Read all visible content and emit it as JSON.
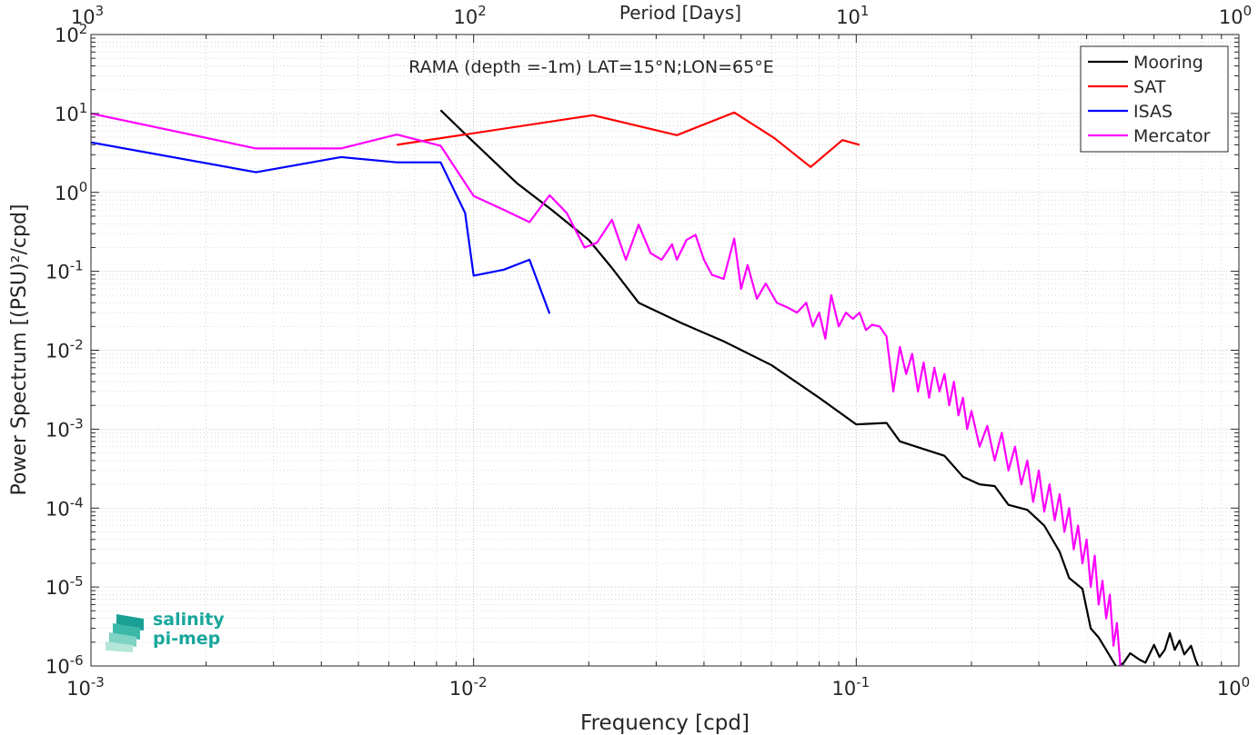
{
  "chart_data": {
    "type": "line",
    "title": "RAMA (depth =-1m) LAT=15°N;LON=65°E",
    "xlabel": "Frequency [cpd]",
    "ylabel": "Power Spectrum [(PSU)²/cpd]",
    "top_axis_label": "Period [Days]",
    "xscale": "log",
    "yscale": "log",
    "xlim": [
      0.001,
      1
    ],
    "ylim": [
      1e-06,
      100
    ],
    "x_ticks": [
      {
        "value": 0.001,
        "base": "10",
        "exp": "-3"
      },
      {
        "value": 0.01,
        "base": "10",
        "exp": "-2"
      },
      {
        "value": 0.1,
        "base": "10",
        "exp": "-1"
      },
      {
        "value": 1,
        "base": "10",
        "exp": "0"
      }
    ],
    "top_ticks": [
      {
        "freq": 0.001,
        "base": "10",
        "exp": "3"
      },
      {
        "freq": 0.01,
        "base": "10",
        "exp": "2"
      },
      {
        "freq": 0.1,
        "base": "10",
        "exp": "1"
      },
      {
        "freq": 1,
        "base": "10",
        "exp": "0"
      }
    ],
    "y_ticks": [
      {
        "value": 100,
        "base": "10",
        "exp": "2"
      },
      {
        "value": 10,
        "base": "10",
        "exp": "1"
      },
      {
        "value": 1,
        "base": "10",
        "exp": "0"
      },
      {
        "value": 0.1,
        "base": "10",
        "exp": "-1"
      },
      {
        "value": 0.01,
        "base": "10",
        "exp": "-2"
      },
      {
        "value": 0.001,
        "base": "10",
        "exp": "-3"
      },
      {
        "value": 0.0001,
        "base": "10",
        "exp": "-4"
      },
      {
        "value": 1e-05,
        "base": "10",
        "exp": "-5"
      },
      {
        "value": 1e-06,
        "base": "10",
        "exp": "-6"
      }
    ],
    "grid": true,
    "legend_position": "top-right",
    "series": [
      {
        "name": "Mooring",
        "color": "#000000",
        "points": [
          [
            0.0082,
            11
          ],
          [
            0.0095,
            5.5
          ],
          [
            0.011,
            2.8
          ],
          [
            0.013,
            1.3
          ],
          [
            0.016,
            0.6
          ],
          [
            0.02,
            0.25
          ],
          [
            0.023,
            0.11
          ],
          [
            0.027,
            0.04
          ],
          [
            0.035,
            0.022
          ],
          [
            0.045,
            0.013
          ],
          [
            0.06,
            0.0065
          ],
          [
            0.08,
            0.0025
          ],
          [
            0.1,
            0.00115
          ],
          [
            0.12,
            0.0012
          ],
          [
            0.13,
            0.0007
          ],
          [
            0.17,
            0.00046
          ],
          [
            0.19,
            0.00025
          ],
          [
            0.21,
            0.0002
          ],
          [
            0.23,
            0.00019
          ],
          [
            0.25,
            0.00011
          ],
          [
            0.28,
            9.5e-05
          ],
          [
            0.31,
            6e-05
          ],
          [
            0.34,
            2.8e-05
          ],
          [
            0.36,
            1.3e-05
          ],
          [
            0.39,
            9.5e-06
          ],
          [
            0.41,
            3e-06
          ],
          [
            0.43,
            2.3e-06
          ],
          [
            0.45,
            1.6e-06
          ],
          [
            0.48,
            9.5e-07
          ],
          [
            0.5,
            1.1e-06
          ],
          [
            0.52,
            1.45e-06
          ],
          [
            0.55,
            1.2e-06
          ],
          [
            0.57,
            1.1e-06
          ],
          [
            0.6,
            1.85e-06
          ],
          [
            0.62,
            1.3e-06
          ],
          [
            0.64,
            1.6e-06
          ],
          [
            0.66,
            2.6e-06
          ],
          [
            0.68,
            1.6e-06
          ],
          [
            0.7,
            2.1e-06
          ],
          [
            0.72,
            1.4e-06
          ],
          [
            0.75,
            1.8e-06
          ],
          [
            0.77,
            1.2e-06
          ],
          [
            0.79,
            9e-07
          ]
        ]
      },
      {
        "name": "SAT",
        "color": "#ff0000",
        "points": [
          [
            0.0063,
            4
          ],
          [
            0.0205,
            9.5
          ],
          [
            0.034,
            5.3
          ],
          [
            0.048,
            10.3
          ],
          [
            0.061,
            4.9
          ],
          [
            0.076,
            2.1
          ],
          [
            0.092,
            4.6
          ],
          [
            0.102,
            4
          ]
        ]
      },
      {
        "name": "ISAS",
        "color": "#0000ff",
        "points": [
          [
            0.001,
            4.3
          ],
          [
            0.0027,
            1.8
          ],
          [
            0.0045,
            2.8
          ],
          [
            0.0063,
            2.4
          ],
          [
            0.0082,
            2.4
          ],
          [
            0.0095,
            0.55
          ],
          [
            0.01,
            0.088
          ],
          [
            0.012,
            0.105
          ],
          [
            0.014,
            0.14
          ],
          [
            0.0158,
            0.029
          ]
        ]
      },
      {
        "name": "Mercator",
        "color": "#ff00ff",
        "points": [
          [
            0.001,
            10
          ],
          [
            0.0027,
            3.6
          ],
          [
            0.0045,
            3.6
          ],
          [
            0.0063,
            5.4
          ],
          [
            0.0082,
            3.9
          ],
          [
            0.01,
            0.9
          ],
          [
            0.012,
            0.6
          ],
          [
            0.014,
            0.42
          ],
          [
            0.0158,
            0.92
          ],
          [
            0.0175,
            0.55
          ],
          [
            0.0195,
            0.2
          ],
          [
            0.021,
            0.23
          ],
          [
            0.023,
            0.45
          ],
          [
            0.025,
            0.14
          ],
          [
            0.027,
            0.39
          ],
          [
            0.029,
            0.17
          ],
          [
            0.031,
            0.14
          ],
          [
            0.033,
            0.22
          ],
          [
            0.034,
            0.14
          ],
          [
            0.036,
            0.25
          ],
          [
            0.038,
            0.29
          ],
          [
            0.04,
            0.14
          ],
          [
            0.042,
            0.09
          ],
          [
            0.045,
            0.08
          ],
          [
            0.048,
            0.26
          ],
          [
            0.05,
            0.06
          ],
          [
            0.052,
            0.12
          ],
          [
            0.055,
            0.045
          ],
          [
            0.058,
            0.07
          ],
          [
            0.062,
            0.04
          ],
          [
            0.066,
            0.035
          ],
          [
            0.07,
            0.03
          ],
          [
            0.074,
            0.04
          ],
          [
            0.077,
            0.02
          ],
          [
            0.08,
            0.03
          ],
          [
            0.083,
            0.014
          ],
          [
            0.086,
            0.05
          ],
          [
            0.09,
            0.02
          ],
          [
            0.094,
            0.03
          ],
          [
            0.098,
            0.025
          ],
          [
            0.102,
            0.03
          ],
          [
            0.106,
            0.018
          ],
          [
            0.11,
            0.021
          ],
          [
            0.115,
            0.02
          ],
          [
            0.12,
            0.015
          ],
          [
            0.125,
            0.003
          ],
          [
            0.13,
            0.011
          ],
          [
            0.135,
            0.005
          ],
          [
            0.14,
            0.009
          ],
          [
            0.145,
            0.003
          ],
          [
            0.15,
            0.007
          ],
          [
            0.155,
            0.0025
          ],
          [
            0.16,
            0.006
          ],
          [
            0.165,
            0.003
          ],
          [
            0.17,
            0.005
          ],
          [
            0.175,
            0.002
          ],
          [
            0.18,
            0.004
          ],
          [
            0.185,
            0.0015
          ],
          [
            0.19,
            0.0025
          ],
          [
            0.195,
            0.001
          ],
          [
            0.2,
            0.0017
          ],
          [
            0.21,
            0.0006
          ],
          [
            0.22,
            0.0011
          ],
          [
            0.23,
            0.0004
          ],
          [
            0.24,
            0.0009
          ],
          [
            0.25,
            0.0003
          ],
          [
            0.26,
            0.0006
          ],
          [
            0.27,
            0.0002
          ],
          [
            0.28,
            0.0004
          ],
          [
            0.29,
            0.00012
          ],
          [
            0.3,
            0.0003
          ],
          [
            0.31,
            9e-05
          ],
          [
            0.32,
            0.0002
          ],
          [
            0.33,
            7e-05
          ],
          [
            0.34,
            0.00015
          ],
          [
            0.35,
            5e-05
          ],
          [
            0.36,
            0.0001
          ],
          [
            0.37,
            3e-05
          ],
          [
            0.38,
            6e-05
          ],
          [
            0.39,
            2e-05
          ],
          [
            0.4,
            4e-05
          ],
          [
            0.41,
            1e-05
          ],
          [
            0.42,
            2.5e-05
          ],
          [
            0.43,
            6e-06
          ],
          [
            0.44,
            1.2e-05
          ],
          [
            0.45,
            4e-06
          ],
          [
            0.46,
            8e-06
          ],
          [
            0.47,
            1.8e-06
          ],
          [
            0.48,
            3.5e-06
          ],
          [
            0.49,
            1e-06
          ],
          [
            0.5,
            8e-07
          ]
        ]
      }
    ]
  },
  "logo": {
    "line1": "salinity",
    "line2": "pi-mep",
    "colors": [
      "#1a9f94",
      "#3cb8a9",
      "#7fd3c2",
      "#b5e6da"
    ]
  }
}
